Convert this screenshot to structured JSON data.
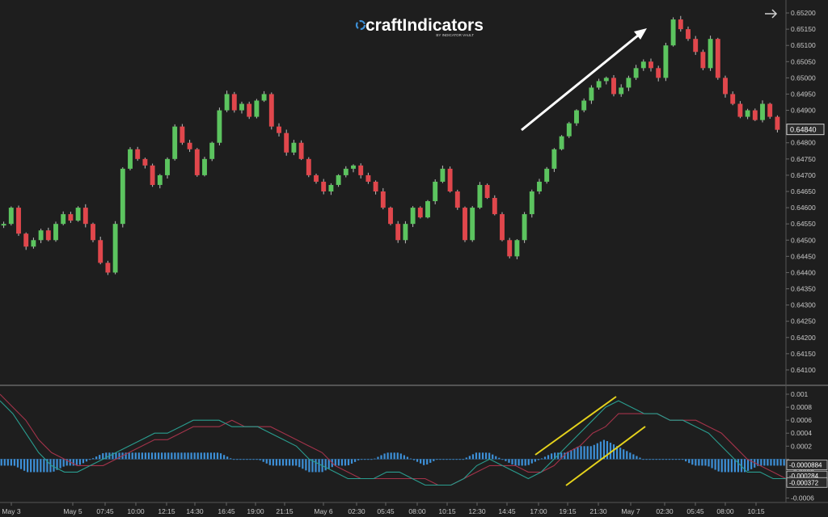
{
  "logo": {
    "brand": "craftIndicators",
    "tagline": "BY INDICATOR VAULT"
  },
  "colors": {
    "background": "#1e1e1e",
    "bull": "#5cc45f",
    "bear": "#e0474c",
    "wick": "#bdbdbd",
    "axis_text": "#c8c8c8",
    "histogram": "#3d8fd6",
    "macd_line": "#2a9d8f",
    "signal_line": "#a3334a",
    "annotation_arrow": "#ffffff",
    "annotation_channel": "#e5d21c"
  },
  "chart_data": [
    {
      "type": "candlestick",
      "title": "",
      "y_axis_ticks": [
        "0.65200",
        "0.65150",
        "0.65100",
        "0.65050",
        "0.65000",
        "0.64950",
        "0.64900",
        "0.64850",
        "0.64800",
        "0.64750",
        "0.64700",
        "0.64650",
        "0.64600",
        "0.64550",
        "0.64500",
        "0.64450",
        "0.64400",
        "0.64350",
        "0.64300",
        "0.64250",
        "0.64200",
        "0.64150",
        "0.64100"
      ],
      "ylim": [
        0.6407,
        0.6522
      ],
      "current_price_label": "0.64840",
      "current_price": 0.6484,
      "x_tick_labels": [
        "May 3",
        "May 5",
        "07:45",
        "10:00",
        "12:15",
        "14:30",
        "16:45",
        "19:00",
        "21:15",
        "May 6",
        "02:30",
        "05:45",
        "08:00",
        "10:15",
        "12:30",
        "14:45",
        "17:00",
        "19:15",
        "21:30",
        "May 7",
        "02:30",
        "05:45",
        "08:00",
        "10:15"
      ],
      "close_series_approx": [
        0.6455,
        0.646,
        0.6452,
        0.6448,
        0.645,
        0.6453,
        0.645,
        0.6455,
        0.6458,
        0.6456,
        0.646,
        0.6455,
        0.645,
        0.6443,
        0.644,
        0.6455,
        0.6472,
        0.6478,
        0.6475,
        0.6473,
        0.6467,
        0.647,
        0.6475,
        0.6485,
        0.648,
        0.6478,
        0.647,
        0.6475,
        0.648,
        0.649,
        0.6495,
        0.649,
        0.6492,
        0.6488,
        0.6493,
        0.6495,
        0.6485,
        0.6483,
        0.6477,
        0.648,
        0.6475,
        0.647,
        0.6468,
        0.6465,
        0.6467,
        0.647,
        0.6472,
        0.6473,
        0.647,
        0.6468,
        0.6465,
        0.646,
        0.6455,
        0.645,
        0.6455,
        0.646,
        0.6457,
        0.6462,
        0.6468,
        0.6472,
        0.6465,
        0.646,
        0.645,
        0.646,
        0.6467,
        0.6463,
        0.6458,
        0.645,
        0.6445,
        0.645,
        0.6458,
        0.6465,
        0.6468,
        0.6472,
        0.6478,
        0.6482,
        0.6486,
        0.649,
        0.6493,
        0.6497,
        0.6499,
        0.65,
        0.6495,
        0.6497,
        0.65,
        0.6503,
        0.6505,
        0.6503,
        0.65,
        0.651,
        0.6518,
        0.6515,
        0.6512,
        0.6508,
        0.6503,
        0.6512,
        0.65,
        0.6495,
        0.6492,
        0.6488,
        0.649,
        0.6487,
        0.6492,
        0.6488,
        0.6484
      ]
    },
    {
      "type": "macd",
      "y_axis_ticks": [
        "0.001",
        "0.0008",
        "0.0006",
        "0.0004",
        "0.0002",
        "0",
        "-0.0002",
        "-0.0004",
        "-0.0006"
      ],
      "ylim": [
        -0.00063,
        0.00105
      ],
      "value_labels": [
        "-0.0000884",
        "-0.000284",
        "-0.000372"
      ],
      "value_label_values": [
        -8.84e-05,
        -0.000284,
        -0.000372
      ],
      "macd_approx": [
        0.0009,
        0.0007,
        0.0004,
        0.0001,
        -0.0001,
        -0.0002,
        -0.0002,
        -0.0001,
        0.0,
        0.0001,
        0.0002,
        0.0003,
        0.0004,
        0.0004,
        0.0005,
        0.0006,
        0.0006,
        0.0006,
        0.0005,
        0.0005,
        0.0005,
        0.0004,
        0.0003,
        0.0002,
        0.0,
        -0.0001,
        -0.0002,
        -0.0003,
        -0.0003,
        -0.0003,
        -0.0002,
        -0.0002,
        -0.0003,
        -0.0004,
        -0.0004,
        -0.0004,
        -0.0003,
        -0.0001,
        0.0,
        -0.0001,
        -0.0002,
        -0.0003,
        -0.0002,
        0.0,
        0.0002,
        0.0004,
        0.0006,
        0.0008,
        0.0009,
        0.0008,
        0.0007,
        0.0007,
        0.0006,
        0.0006,
        0.0005,
        0.0004,
        0.0002,
        0.0,
        -0.0002,
        -0.0002,
        -0.0003,
        -0.0003
      ],
      "signal_approx": [
        0.001,
        0.0008,
        0.0006,
        0.0003,
        0.0001,
        0.0,
        -0.0001,
        -0.0001,
        -0.0001,
        0.0,
        0.0001,
        0.0002,
        0.0003,
        0.0003,
        0.0004,
        0.0005,
        0.0005,
        0.0005,
        0.0006,
        0.0005,
        0.0005,
        0.0005,
        0.0004,
        0.0003,
        0.0002,
        0.0001,
        -0.0001,
        -0.0002,
        -0.0003,
        -0.0003,
        -0.0003,
        -0.0003,
        -0.0003,
        -0.0003,
        -0.0004,
        -0.0004,
        -0.0003,
        -0.0002,
        -0.0001,
        -0.0001,
        -0.0001,
        -0.0002,
        -0.0002,
        -0.0001,
        0.0001,
        0.0002,
        0.0004,
        0.0005,
        0.0007,
        0.0007,
        0.0007,
        0.0007,
        0.0006,
        0.0006,
        0.0006,
        0.0005,
        0.0004,
        0.0002,
        0.0,
        -0.0001,
        -0.0002,
        -0.0003
      ],
      "histogram_approx": [
        -0.0001,
        -0.0001,
        -0.0002,
        -0.0002,
        -0.0002,
        -0.0001,
        -0.0001,
        0.0,
        0.0001,
        0.0001,
        0.0001,
        0.0001,
        0.0001,
        0.0001,
        0.0001,
        0.0001,
        0.0001,
        0.0001,
        0.0,
        0.0,
        0.0,
        -0.0001,
        -0.0001,
        -0.0001,
        -0.0002,
        -0.0002,
        -0.0001,
        -0.0001,
        0.0,
        0.0,
        0.0001,
        0.0001,
        0.0,
        -0.0001,
        0.0,
        0.0,
        0.0,
        0.0001,
        0.0001,
        0.0,
        -0.0001,
        -0.0001,
        0.0,
        0.0001,
        0.0001,
        0.0002,
        0.0002,
        0.0003,
        0.0002,
        0.0001,
        0.0,
        0.0,
        0.0,
        0.0,
        -0.0001,
        -0.0001,
        -0.0002,
        -0.0002,
        -0.0002,
        -0.0001,
        -0.0001,
        -0.0001
      ]
    }
  ]
}
